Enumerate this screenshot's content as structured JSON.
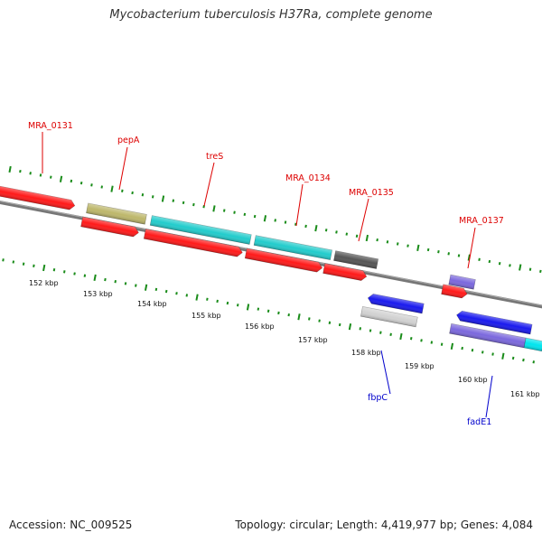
{
  "title": "Mycobacterium tuberculosis H37Ra, complete genome",
  "footer": {
    "accession": "Accession: NC_009525",
    "summary": "Topology: circular; Length: 4,419,977 bp; Genes: 4,084"
  },
  "colors": {
    "cds_red": "#ff1a1a",
    "trna_teal": "#22cccc",
    "olive": "#bdb76b",
    "dark_gray": "#555555",
    "light_gray": "#d2d2d2",
    "blue": "#1a1aee",
    "slate_blue": "#7b68dd",
    "cyan": "#00e5ee",
    "label_red": "#dd0000",
    "label_blue": "#0000cc",
    "tick_green": "#1a8c1a",
    "backbone": "#777777"
  },
  "tick_labels": [
    "152 kbp",
    "153 kbp",
    "154 kbp",
    "155 kbp",
    "156 kbp",
    "157 kbp",
    "158 kbp",
    "159 kbp",
    "160 kbp",
    "161 kbp"
  ],
  "gene_labels": [
    {
      "text": "MRA_0131",
      "strand": "forward"
    },
    {
      "text": "pepA",
      "strand": "forward"
    },
    {
      "text": "treS",
      "strand": "forward"
    },
    {
      "text": "MRA_0134",
      "strand": "forward"
    },
    {
      "text": "MRA_0135",
      "strand": "forward"
    },
    {
      "text": "MRA_0137",
      "strand": "forward"
    },
    {
      "text": "fbpC",
      "strand": "reverse"
    },
    {
      "text": "fadE1",
      "strand": "reverse"
    }
  ]
}
